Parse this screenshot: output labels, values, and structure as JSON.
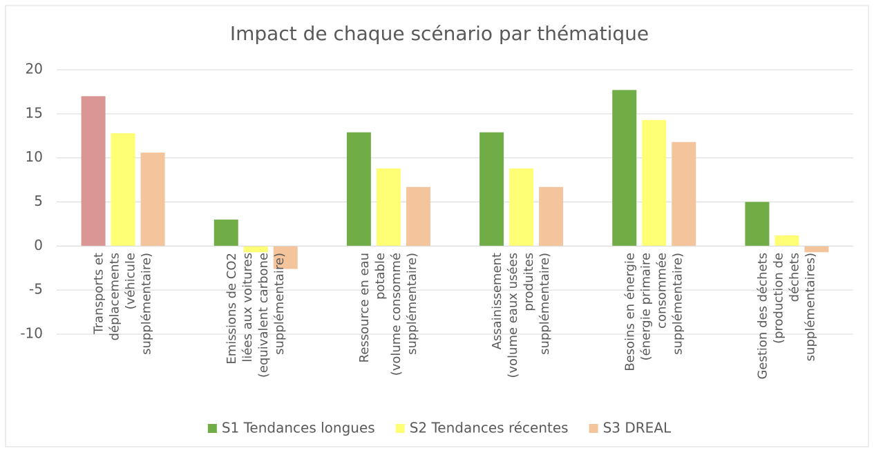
{
  "chart_data": {
    "type": "bar",
    "title": "Impact de chaque scénario par thématique",
    "categories": [
      [
        "Transports et",
        "déplacements",
        "(véhicule",
        "supplémentaire)"
      ],
      [
        "Emissions de CO2",
        "liées aux voitures",
        "(equivalent carbone",
        "supplémentaire)"
      ],
      [
        "Ressource en eau",
        "potable",
        "(volume consommé",
        "supplémentaire)"
      ],
      [
        "Assainissement",
        "(volume eaux usées",
        "produites",
        "supplémentaire)"
      ],
      [
        "Besoins en énergie",
        "(énergie primaire",
        "consommée",
        "supplémentaire)"
      ],
      [
        "Gestion des déchets",
        "(production de",
        "déchets",
        "supplémentaires)"
      ]
    ],
    "series": [
      {
        "name": "S1 Tendances longues",
        "color": "#70ad47",
        "point_colors": [
          "#d99694",
          "#70ad47",
          "#70ad47",
          "#70ad47",
          "#70ad47",
          "#70ad47"
        ],
        "values": [
          17,
          3,
          12.9,
          12.9,
          17.7,
          5
        ]
      },
      {
        "name": "S2 Tendances récentes",
        "color": "#ffff75",
        "values": [
          12.8,
          -0.7,
          8.8,
          8.8,
          14.3,
          1.2
        ]
      },
      {
        "name": "S3 DREAL",
        "color": "#f4c49c",
        "values": [
          10.6,
          -2.6,
          6.7,
          6.7,
          11.8,
          -0.7
        ]
      }
    ],
    "ylim": [
      -10,
      20
    ],
    "yticks": [
      -10,
      -5,
      0,
      5,
      10,
      15,
      20
    ],
    "grid": true,
    "legend": "bottom"
  }
}
